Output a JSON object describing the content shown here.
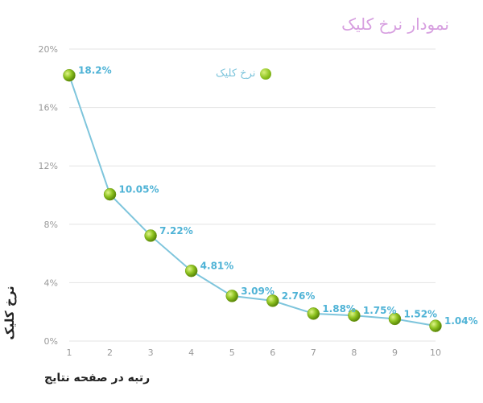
{
  "chart_data": {
    "type": "line",
    "title": "نمودار نرخ کلیک",
    "xlabel": "رتبه در صفحه نتایج",
    "ylabel": "نرخ کلیک",
    "x": [
      1,
      2,
      3,
      4,
      5,
      6,
      7,
      8,
      9,
      10
    ],
    "series": [
      {
        "name": "نرخ کلیک",
        "values": [
          18.2,
          10.05,
          7.22,
          4.81,
          3.09,
          2.76,
          1.88,
          1.75,
          1.52,
          1.04
        ],
        "labels": [
          "18.2%",
          "10.05%",
          "7.22%",
          "4.81%",
          "3.09%",
          "2.76%",
          "1.88%",
          "1.75%",
          "1.52%",
          "1.04%"
        ]
      }
    ],
    "ylim": [
      0,
      20
    ],
    "yticks": [
      0,
      4,
      8,
      12,
      16,
      20
    ],
    "ytick_labels": [
      "0%",
      "4%",
      "8%",
      "12%",
      "16%",
      "20%"
    ],
    "xtick_labels": [
      "1",
      "2",
      "3",
      "4",
      "5",
      "6",
      "7",
      "8",
      "9",
      "10"
    ],
    "grid": true,
    "legend_position": "top-center",
    "colors": {
      "line": "#7ec5dc",
      "marker": "#8dc21f",
      "label": "#4fb3d6",
      "title": "#d79fe0",
      "grid": "#e3e3e3"
    }
  }
}
